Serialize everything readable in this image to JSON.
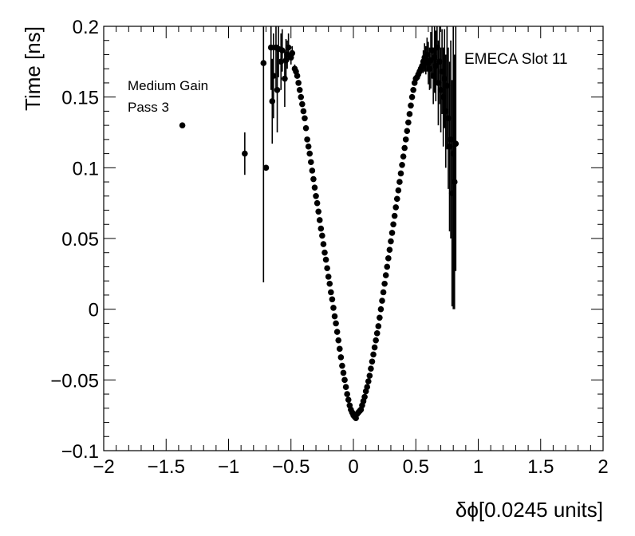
{
  "chart_data": {
    "type": "scatter",
    "title": "",
    "xlabel": "δϕ[0.0245 units]",
    "ylabel": "Time [ns]",
    "xlim": [
      -2,
      2
    ],
    "ylim": [
      -0.1,
      0.2
    ],
    "xticks": [
      -2,
      -1.5,
      -1,
      -0.5,
      0,
      0.5,
      1,
      1.5,
      2
    ],
    "xtick_labels": [
      "−2",
      "−1.5",
      "−1",
      "−0.5",
      "0",
      "0.5",
      "1",
      "1.5",
      "2"
    ],
    "yticks": [
      -0.1,
      -0.05,
      0,
      0.05,
      0.1,
      0.15,
      0.2
    ],
    "ytick_labels": [
      "−0.1",
      "−0.05",
      "0",
      "0.05",
      "0.1",
      "0.15",
      "0.2"
    ],
    "grid": false,
    "marker_color": "#000000",
    "annotations": {
      "top_right": "EMECA Slot 11",
      "gain": "Medium Gain",
      "pass": "Pass 3"
    },
    "series": [
      {
        "points": [
          [
            -1.37,
            0.13,
            0
          ],
          [
            -0.87,
            0.11,
            0.015
          ],
          [
            -0.72,
            0.174,
            0.155
          ],
          [
            -0.7,
            0.1,
            0
          ],
          [
            -0.66,
            0.185,
            0.03
          ],
          [
            -0.65,
            0.147,
            0.03
          ],
          [
            -0.64,
            0.165,
            0.03
          ],
          [
            -0.62,
            0.185,
            0.03
          ],
          [
            -0.61,
            0.155,
            0.03
          ],
          [
            -0.6,
            0.184,
            0.02
          ],
          [
            -0.58,
            0.175,
            0.02
          ],
          [
            -0.57,
            0.183,
            0.015
          ],
          [
            -0.55,
            0.163,
            0.02
          ],
          [
            -0.54,
            0.176,
            0.015
          ],
          [
            -0.53,
            0.18,
            0.01
          ],
          [
            -0.52,
            0.185,
            0.01
          ],
          [
            -0.5,
            0.178,
            0.005
          ],
          [
            -0.49,
            0.181,
            0.005
          ],
          [
            -0.47,
            0.17,
            0.003
          ],
          [
            -0.46,
            0.168,
            0
          ],
          [
            -0.45,
            0.165,
            0
          ],
          [
            -0.44,
            0.16,
            0
          ],
          [
            -0.43,
            0.155,
            0
          ],
          [
            -0.42,
            0.15,
            0
          ],
          [
            -0.41,
            0.145,
            0
          ],
          [
            -0.4,
            0.14,
            0
          ],
          [
            -0.39,
            0.135,
            0
          ],
          [
            -0.38,
            0.128,
            0
          ],
          [
            -0.37,
            0.12,
            0
          ],
          [
            -0.36,
            0.115,
            0
          ],
          [
            -0.35,
            0.11,
            0
          ],
          [
            -0.34,
            0.104,
            0
          ],
          [
            -0.33,
            0.098,
            0
          ],
          [
            -0.32,
            0.092,
            0
          ],
          [
            -0.31,
            0.086,
            0
          ],
          [
            -0.3,
            0.08,
            0
          ],
          [
            -0.29,
            0.075,
            0
          ],
          [
            -0.28,
            0.069,
            0
          ],
          [
            -0.27,
            0.063,
            0
          ],
          [
            -0.26,
            0.057,
            0
          ],
          [
            -0.25,
            0.052,
            0
          ],
          [
            -0.24,
            0.046,
            0
          ],
          [
            -0.23,
            0.04,
            0
          ],
          [
            -0.22,
            0.035,
            0
          ],
          [
            -0.21,
            0.029,
            0
          ],
          [
            -0.2,
            0.023,
            0
          ],
          [
            -0.19,
            0.018,
            0
          ],
          [
            -0.18,
            0.012,
            0
          ],
          [
            -0.17,
            0.007,
            0
          ],
          [
            -0.16,
            0.001,
            0
          ],
          [
            -0.15,
            -0.005,
            0
          ],
          [
            -0.14,
            -0.01,
            0
          ],
          [
            -0.13,
            -0.016,
            0
          ],
          [
            -0.12,
            -0.022,
            0
          ],
          [
            -0.11,
            -0.028,
            0
          ],
          [
            -0.1,
            -0.034,
            0
          ],
          [
            -0.09,
            -0.04,
            0
          ],
          [
            -0.08,
            -0.045,
            0
          ],
          [
            -0.07,
            -0.05,
            0
          ],
          [
            -0.06,
            -0.055,
            0
          ],
          [
            -0.05,
            -0.06,
            0
          ],
          [
            -0.04,
            -0.064,
            0
          ],
          [
            -0.03,
            -0.068,
            0
          ],
          [
            -0.02,
            -0.071,
            0
          ],
          [
            -0.01,
            -0.073,
            0
          ],
          [
            0.0,
            -0.075,
            0
          ],
          [
            0.01,
            -0.076,
            0
          ],
          [
            0.02,
            -0.077,
            0
          ],
          [
            0.03,
            -0.074,
            0
          ],
          [
            0.04,
            -0.073,
            0
          ],
          [
            0.05,
            -0.072,
            0
          ],
          [
            0.06,
            -0.071,
            0
          ],
          [
            0.07,
            -0.068,
            0
          ],
          [
            0.08,
            -0.065,
            0
          ],
          [
            0.09,
            -0.062,
            0
          ],
          [
            0.1,
            -0.058,
            0
          ],
          [
            0.11,
            -0.055,
            0
          ],
          [
            0.12,
            -0.051,
            0
          ],
          [
            0.13,
            -0.047,
            0
          ],
          [
            0.14,
            -0.042,
            0
          ],
          [
            0.15,
            -0.037,
            0
          ],
          [
            0.16,
            -0.032,
            0
          ],
          [
            0.17,
            -0.027,
            0
          ],
          [
            0.18,
            -0.022,
            0
          ],
          [
            0.19,
            -0.017,
            0
          ],
          [
            0.2,
            -0.012,
            0
          ],
          [
            0.21,
            -0.006,
            0
          ],
          [
            0.22,
            0.0,
            0
          ],
          [
            0.23,
            0.006,
            0
          ],
          [
            0.24,
            0.012,
            0
          ],
          [
            0.25,
            0.018,
            0
          ],
          [
            0.26,
            0.024,
            0
          ],
          [
            0.27,
            0.03,
            0
          ],
          [
            0.28,
            0.036,
            0
          ],
          [
            0.29,
            0.042,
            0
          ],
          [
            0.3,
            0.048,
            0
          ],
          [
            0.31,
            0.054,
            0
          ],
          [
            0.32,
            0.06,
            0
          ],
          [
            0.33,
            0.066,
            0
          ],
          [
            0.34,
            0.072,
            0
          ],
          [
            0.35,
            0.078,
            0
          ],
          [
            0.36,
            0.084,
            0
          ],
          [
            0.37,
            0.09,
            0
          ],
          [
            0.38,
            0.096,
            0
          ],
          [
            0.39,
            0.102,
            0
          ],
          [
            0.4,
            0.108,
            0
          ],
          [
            0.41,
            0.114,
            0
          ],
          [
            0.42,
            0.12,
            0
          ],
          [
            0.43,
            0.126,
            0
          ],
          [
            0.44,
            0.132,
            0
          ],
          [
            0.45,
            0.138,
            0
          ],
          [
            0.46,
            0.144,
            0
          ],
          [
            0.47,
            0.15,
            0
          ],
          [
            0.48,
            0.155,
            0
          ],
          [
            0.49,
            0.16,
            0
          ],
          [
            0.5,
            0.163,
            0
          ],
          [
            0.51,
            0.164,
            0
          ],
          [
            0.52,
            0.166,
            0
          ],
          [
            0.53,
            0.168,
            0
          ],
          [
            0.54,
            0.17,
            0
          ],
          [
            0.55,
            0.172,
            0.005
          ],
          [
            0.56,
            0.175,
            0.008
          ],
          [
            0.57,
            0.178,
            0.01
          ],
          [
            0.58,
            0.176,
            0.01
          ],
          [
            0.59,
            0.18,
            0.012
          ],
          [
            0.6,
            0.174,
            0.015
          ],
          [
            0.61,
            0.17,
            0.015
          ],
          [
            0.62,
            0.176,
            0.02
          ],
          [
            0.63,
            0.183,
            0.02
          ],
          [
            0.64,
            0.165,
            0.02
          ],
          [
            0.65,
            0.178,
            0.025
          ],
          [
            0.66,
            0.172,
            0.025
          ],
          [
            0.67,
            0.185,
            0.025
          ],
          [
            0.68,
            0.16,
            0.03
          ],
          [
            0.69,
            0.175,
            0.03
          ],
          [
            0.7,
            0.155,
            0.03
          ],
          [
            0.71,
            0.168,
            0.03
          ],
          [
            0.72,
            0.15,
            0.035
          ],
          [
            0.73,
            0.163,
            0.035
          ],
          [
            0.74,
            0.14,
            0.04
          ],
          [
            0.75,
            0.158,
            0.045
          ],
          [
            0.76,
            0.135,
            0.05
          ],
          [
            0.77,
            0.115,
            0.06
          ],
          [
            0.78,
            0.12,
            0.07
          ],
          [
            0.79,
            0.082,
            0.08
          ],
          [
            0.8,
            0.11,
            0.11
          ],
          [
            0.81,
            0.09,
            0.09
          ],
          [
            0.82,
            0.117,
            0.09
          ]
        ]
      }
    ]
  }
}
